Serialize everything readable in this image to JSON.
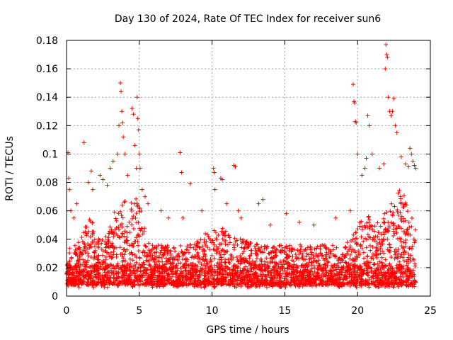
{
  "chart_data": {
    "type": "scatter",
    "title": "Day 130 of 2024, Rate Of TEC Index for receiver sun6",
    "xlabel": "GPS time / hours",
    "ylabel": "ROTI / TECUs",
    "xlim": [
      0,
      25
    ],
    "ylim": [
      0,
      0.18
    ],
    "xticks": [
      0,
      5,
      10,
      15,
      20,
      25
    ],
    "xtick_labels": [
      "0",
      "5",
      "10",
      "15",
      "20",
      "25"
    ],
    "yticks": [
      0,
      0.02,
      0.04,
      0.06,
      0.08,
      0.1,
      0.12,
      0.14,
      0.16,
      0.18
    ],
    "ytick_labels": [
      "0",
      "0.02",
      "0.04",
      "0.06",
      "0.08",
      "0.1",
      "0.12",
      "0.14",
      "0.16",
      "0.18"
    ],
    "grid": true,
    "marker": "+",
    "color": "#ff0000",
    "series": [
      {
        "name": "ROTI",
        "points": [
          [
            0.1,
            0.101
          ],
          [
            0.15,
            0.083
          ],
          [
            0.2,
            0.075
          ],
          [
            0.3,
            0.06
          ],
          [
            0.5,
            0.055
          ],
          [
            0.7,
            0.065
          ],
          [
            1.2,
            0.108
          ],
          [
            1.5,
            0.08
          ],
          [
            1.7,
            0.088
          ],
          [
            1.8,
            0.075
          ],
          [
            2.3,
            0.085
          ],
          [
            2.5,
            0.082
          ],
          [
            2.8,
            0.078
          ],
          [
            3.0,
            0.09
          ],
          [
            3.2,
            0.095
          ],
          [
            3.5,
            0.1
          ],
          [
            3.6,
            0.12
          ],
          [
            3.7,
            0.15
          ],
          [
            3.75,
            0.144
          ],
          [
            3.8,
            0.13
          ],
          [
            3.85,
            0.122
          ],
          [
            3.9,
            0.112
          ],
          [
            4.0,
            0.1
          ],
          [
            4.2,
            0.085
          ],
          [
            4.5,
            0.132
          ],
          [
            4.6,
            0.128
          ],
          [
            4.7,
            0.106
          ],
          [
            4.8,
            0.09
          ],
          [
            4.85,
            0.14
          ],
          [
            4.9,
            0.125
          ],
          [
            4.95,
            0.117
          ],
          [
            5.0,
            0.1
          ],
          [
            5.05,
            0.09
          ],
          [
            5.2,
            0.075
          ],
          [
            5.4,
            0.07
          ],
          [
            5.6,
            0.065
          ],
          [
            6.5,
            0.06
          ],
          [
            7.0,
            0.055
          ],
          [
            7.8,
            0.101
          ],
          [
            7.9,
            0.087
          ],
          [
            8.5,
            0.079
          ],
          [
            8.0,
            0.055
          ],
          [
            9.3,
            0.06
          ],
          [
            10.1,
            0.09
          ],
          [
            10.15,
            0.087
          ],
          [
            10.2,
            0.075
          ],
          [
            10.6,
            0.083
          ],
          [
            10.7,
            0.082
          ],
          [
            11.0,
            0.065
          ],
          [
            11.5,
            0.092
          ],
          [
            11.6,
            0.091
          ],
          [
            11.8,
            0.06
          ],
          [
            12.0,
            0.055
          ],
          [
            13.2,
            0.065
          ],
          [
            13.5,
            0.068
          ],
          [
            14.0,
            0.05
          ],
          [
            15.1,
            0.058
          ],
          [
            16.0,
            0.052
          ],
          [
            17.0,
            0.05
          ],
          [
            18.5,
            0.055
          ],
          [
            19.5,
            0.06
          ],
          [
            19.7,
            0.149
          ],
          [
            19.75,
            0.137
          ],
          [
            19.8,
            0.136
          ],
          [
            19.85,
            0.123
          ],
          [
            19.9,
            0.122
          ],
          [
            20.0,
            0.1
          ],
          [
            20.3,
            0.085
          ],
          [
            20.5,
            0.09
          ],
          [
            20.6,
            0.097
          ],
          [
            20.7,
            0.127
          ],
          [
            20.8,
            0.12
          ],
          [
            21.0,
            0.1
          ],
          [
            21.5,
            0.09
          ],
          [
            21.8,
            0.093
          ],
          [
            21.9,
            0.16
          ],
          [
            21.95,
            0.177
          ],
          [
            22.0,
            0.17
          ],
          [
            22.05,
            0.168
          ],
          [
            22.1,
            0.14
          ],
          [
            22.2,
            0.13
          ],
          [
            22.3,
            0.127
          ],
          [
            22.4,
            0.13
          ],
          [
            22.5,
            0.139
          ],
          [
            22.6,
            0.12
          ],
          [
            22.7,
            0.115
          ],
          [
            23.0,
            0.098
          ],
          [
            23.3,
            0.093
          ],
          [
            23.5,
            0.091
          ],
          [
            23.6,
            0.104
          ],
          [
            23.7,
            0.1
          ],
          [
            23.8,
            0.095
          ],
          [
            23.9,
            0.092
          ],
          [
            24.0,
            0.09
          ]
        ]
      }
    ]
  }
}
